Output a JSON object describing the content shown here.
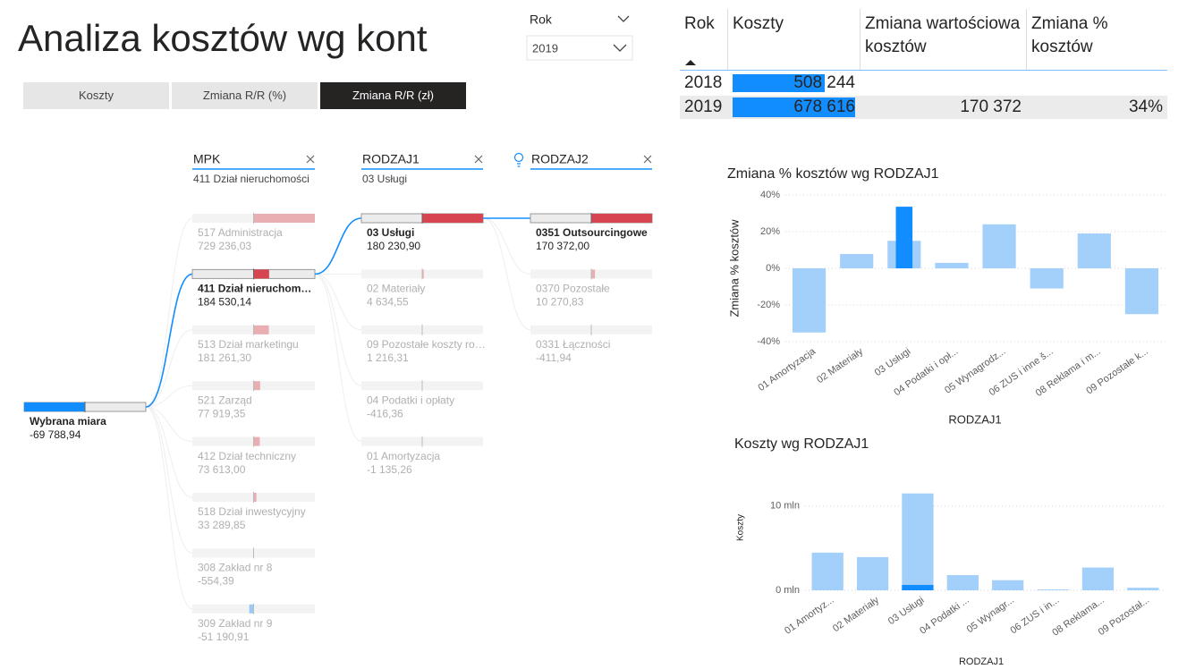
{
  "header": {
    "title": "Analiza kosztów wg kont"
  },
  "slicer": {
    "label": "Rok",
    "value": "2019"
  },
  "buttons": {
    "items": [
      "Koszty",
      "Zmiana R/R (%)",
      "Zmiana R/R (zł)"
    ],
    "active": 2
  },
  "table": {
    "columns": [
      "Rok",
      "Koszty",
      "Zmiana wartościowa kosztów",
      "Zmiana % kosztów"
    ],
    "bar_color": "#118dff",
    "rows": [
      {
        "rok": "2018",
        "koszty": {
          "value": 508244,
          "label": "508 244"
        }
      },
      {
        "rok": "2019",
        "koszty": {
          "value": 678616,
          "label": "678 616"
        },
        "zmiana": {
          "value": 170372,
          "label": "170 372"
        },
        "zmiana_pct": {
          "value": 34,
          "label": "34%"
        }
      }
    ]
  },
  "tree": {
    "positive_color": "#d64550",
    "negative_color": "#118dff",
    "root": {
      "label": "Wybrana miara",
      "value": -69788.94,
      "value_label": "-69 788,94"
    },
    "levels": [
      {
        "title": "MPK",
        "selection": "411 Dział nieruchomości",
        "selected": 1,
        "items": [
          {
            "label": "517 Administracja",
            "value": 729236.03,
            "value_label": "729 236,03"
          },
          {
            "label": "411 Dział nieruchom…",
            "value": 184530.14,
            "value_label": "184 530,14"
          },
          {
            "label": "513 Dział marketingu",
            "value": 181261.3,
            "value_label": "181 261,30"
          },
          {
            "label": "521 Zarząd",
            "value": 77919.35,
            "value_label": "77 919,35"
          },
          {
            "label": "412 Dział techniczny",
            "value": 73613.0,
            "value_label": "73 613,00"
          },
          {
            "label": "518 Dział inwestycyjny",
            "value": 33289.85,
            "value_label": "33 289,85"
          },
          {
            "label": "308 Zakład nr 8",
            "value": -554.39,
            "value_label": "-554,39"
          },
          {
            "label": "309 Zakład nr 9",
            "value": -51190.91,
            "value_label": "-51 190,91"
          }
        ]
      },
      {
        "title": "RODZAJ1",
        "selection": "03 Usługi",
        "selected": 0,
        "items": [
          {
            "label": "03 Usługi",
            "value": 180230.9,
            "value_label": "180 230,90"
          },
          {
            "label": "02 Materiały",
            "value": 4634.55,
            "value_label": "4 634,55"
          },
          {
            "label": "09 Pozostałe koszty ro…",
            "value": 1216.31,
            "value_label": "1 216,31"
          },
          {
            "label": "04 Podatki i opłaty",
            "value": -416.36,
            "value_label": "-416,36"
          },
          {
            "label": "01 Amortyzacja",
            "value": -1135.26,
            "value_label": "-1 135,26"
          }
        ]
      },
      {
        "title": "RODZAJ2",
        "selected": 0,
        "items": [
          {
            "label": "0351 Outsourcingowe",
            "value": 170372.0,
            "value_label": "170 372,00"
          },
          {
            "label": "0370 Pozostałe",
            "value": 10270.83,
            "value_label": "10 270,83"
          },
          {
            "label": "0331 Łączności",
            "value": -411.94,
            "value_label": "-411,94"
          }
        ]
      }
    ]
  },
  "chart_data": [
    {
      "type": "bar",
      "title": "Zmiana % kosztów wg RODZAJ1",
      "x_label": "RODZAJ1",
      "y_label": "Zmiana % kosztów",
      "categories": [
        "01 Amortyzacja",
        "02 Materiały",
        "03 Usługi",
        "04 Podatki i opł...",
        "05 Wynagrodz...",
        "06 ZUS i inne š...",
        "08 Reklama i m...",
        "09 Pozostałe k..."
      ],
      "series": [
        {
          "color": "#a3d0fb",
          "values": [
            -35,
            7.8,
            15,
            3,
            24,
            -11,
            19,
            -25
          ]
        },
        {
          "color": "#118dff",
          "values": [
            null,
            null,
            33.6,
            null,
            null,
            null,
            null,
            null
          ]
        }
      ],
      "ylim": [
        -40,
        40
      ],
      "yticks": [
        {
          "value": -40,
          "label": "-40%"
        },
        {
          "value": -20,
          "label": "-20%"
        },
        {
          "value": 0,
          "label": "0%"
        },
        {
          "value": 20,
          "label": "20%"
        },
        {
          "value": 40,
          "label": "40%"
        }
      ],
      "grid": true
    },
    {
      "type": "bar",
      "title": "Koszty wg RODZAJ1",
      "x_label": "RODZAJ1",
      "y_label": "Koszty",
      "categories": [
        "01 Amortyz...",
        "02 Materiały",
        "03 Usługi",
        "04 Podatki ...",
        "05 Wynagr...",
        "06 ZUS i in...",
        "08 Reklama...",
        "09 Pozostał..."
      ],
      "series": [
        {
          "color": "#a3d0fb",
          "values": [
            4470000,
            3940000,
            11500000,
            1800000,
            1200000,
            100000,
            2700000,
            300000
          ]
        },
        {
          "color": "#118dff",
          "values": [
            null,
            null,
            640000,
            null,
            null,
            null,
            null,
            null
          ]
        }
      ],
      "ylim": [
        0,
        12000000
      ],
      "yticks": [
        {
          "value": 0,
          "label": "0 mln"
        },
        {
          "value": 10000000,
          "label": "10 mln"
        }
      ],
      "grid": true
    }
  ]
}
